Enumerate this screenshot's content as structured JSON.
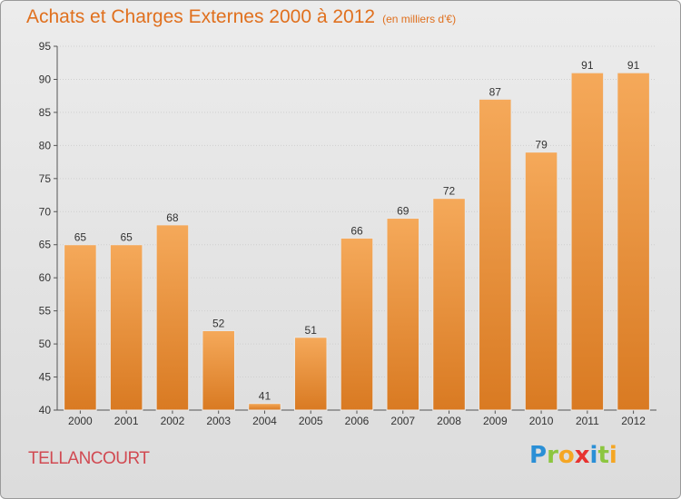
{
  "title": "Achats et Charges Externes 2000 à 2012",
  "unit": "(en milliers d'€)",
  "city": "TELLANCOURT",
  "logo": {
    "letters": [
      {
        "ch": "P",
        "color": "#2a8fd6"
      },
      {
        "ch": "r",
        "color": "#8cc63f"
      },
      {
        "ch": "o",
        "color": "#f5a623"
      },
      {
        "ch": "x",
        "color": "#e8322f"
      },
      {
        "ch": "i",
        "color": "#2a8fd6"
      },
      {
        "ch": "t",
        "color": "#8cc63f"
      },
      {
        "ch": "i",
        "color": "#f5a623"
      }
    ]
  },
  "colors": {
    "bar_top": "#f5a95a",
    "bar_bottom": "#d97a22",
    "title": "#e0701e",
    "city": "#d14a52",
    "grid": "#cfcfcf"
  },
  "chart_data": {
    "type": "bar",
    "categories": [
      "2000",
      "2001",
      "2002",
      "2003",
      "2004",
      "2005",
      "2006",
      "2007",
      "2008",
      "2009",
      "2010",
      "2011",
      "2012"
    ],
    "values": [
      65,
      65,
      68,
      52,
      41,
      51,
      66,
      69,
      72,
      87,
      79,
      91,
      91
    ],
    "ylim": [
      40,
      95
    ],
    "yticks": [
      40,
      45,
      50,
      55,
      60,
      65,
      70,
      75,
      80,
      85,
      90,
      95
    ],
    "grid": true,
    "data_labels": true
  }
}
